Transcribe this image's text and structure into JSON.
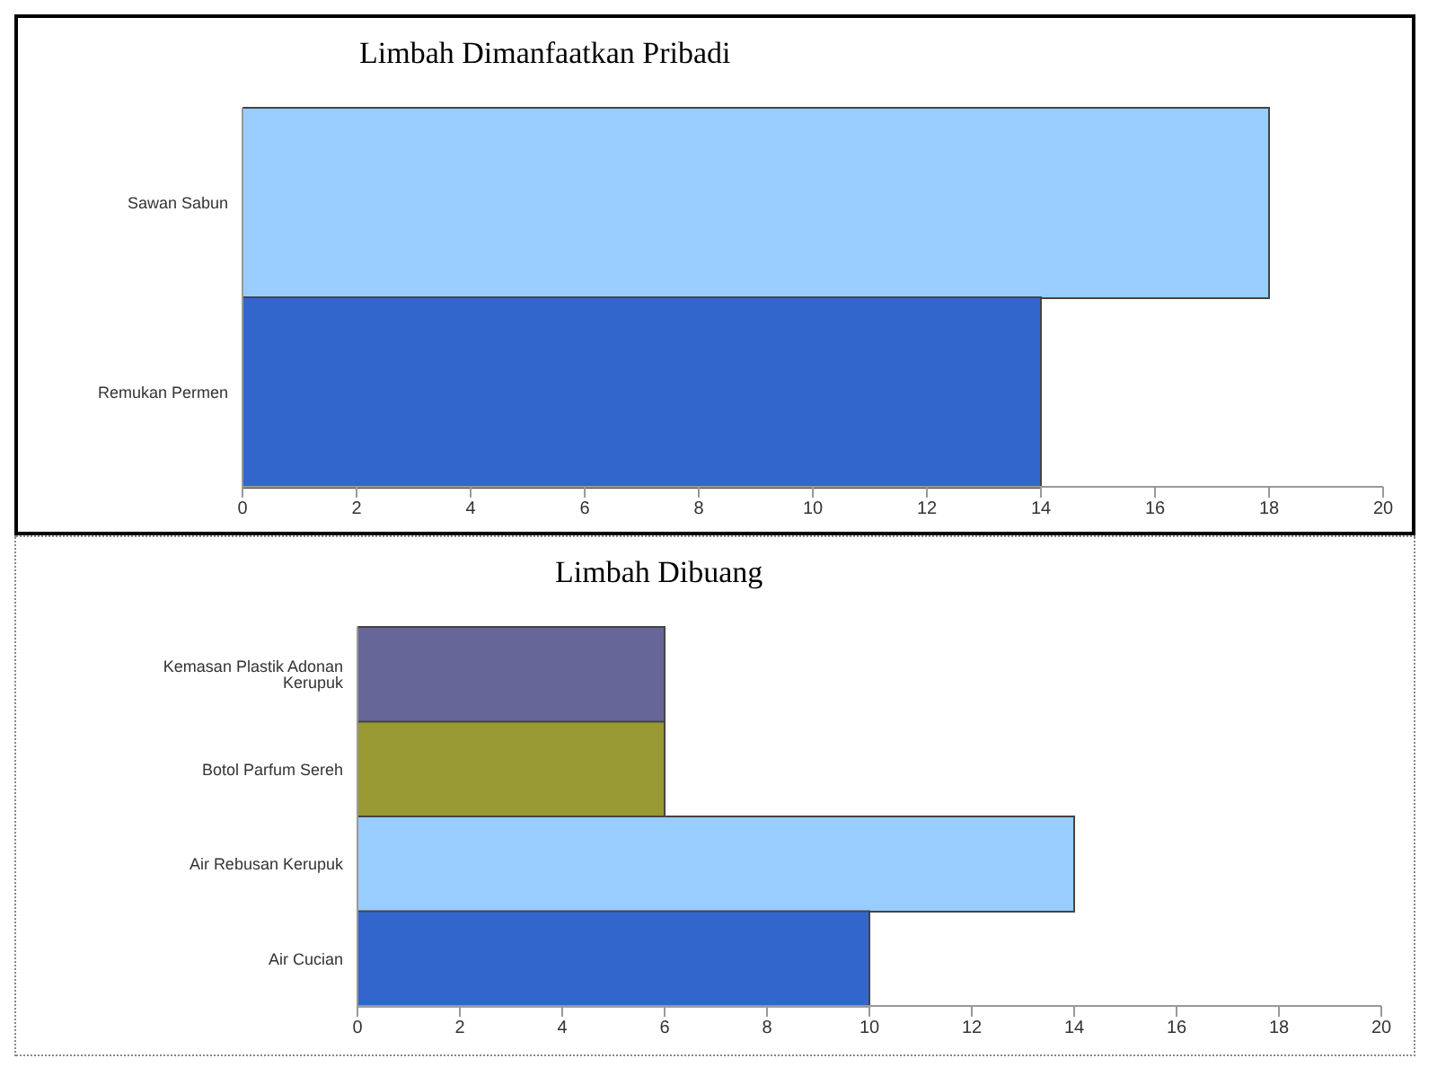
{
  "chart_data": [
    {
      "type": "bar",
      "orientation": "horizontal",
      "title": "Limbah Dimanfaatkan Pribadi",
      "categories": [
        "Sawan Sabun",
        "Remukan Permen"
      ],
      "values": [
        18,
        14
      ],
      "colors": [
        "#99ccff",
        "#3366cc"
      ],
      "xlim": [
        0,
        20
      ],
      "xticks": [
        0,
        2,
        4,
        6,
        8,
        10,
        12,
        14,
        16,
        18,
        20
      ],
      "grid": false,
      "legend": false
    },
    {
      "type": "bar",
      "orientation": "horizontal",
      "title": "Limbah Dibuang",
      "categories": [
        "Kemasan Plastik Adonan Kerupuk",
        "Botol Parfum Sereh",
        "Air Rebusan Kerupuk",
        "Air Cucian"
      ],
      "values": [
        6,
        6,
        14,
        10
      ],
      "colors": [
        "#666699",
        "#999933",
        "#99ccff",
        "#3366cc"
      ],
      "xlim": [
        0,
        20
      ],
      "xticks": [
        0,
        2,
        4,
        6,
        8,
        10,
        12,
        14,
        16,
        18,
        20
      ],
      "grid": false,
      "legend": false
    }
  ]
}
